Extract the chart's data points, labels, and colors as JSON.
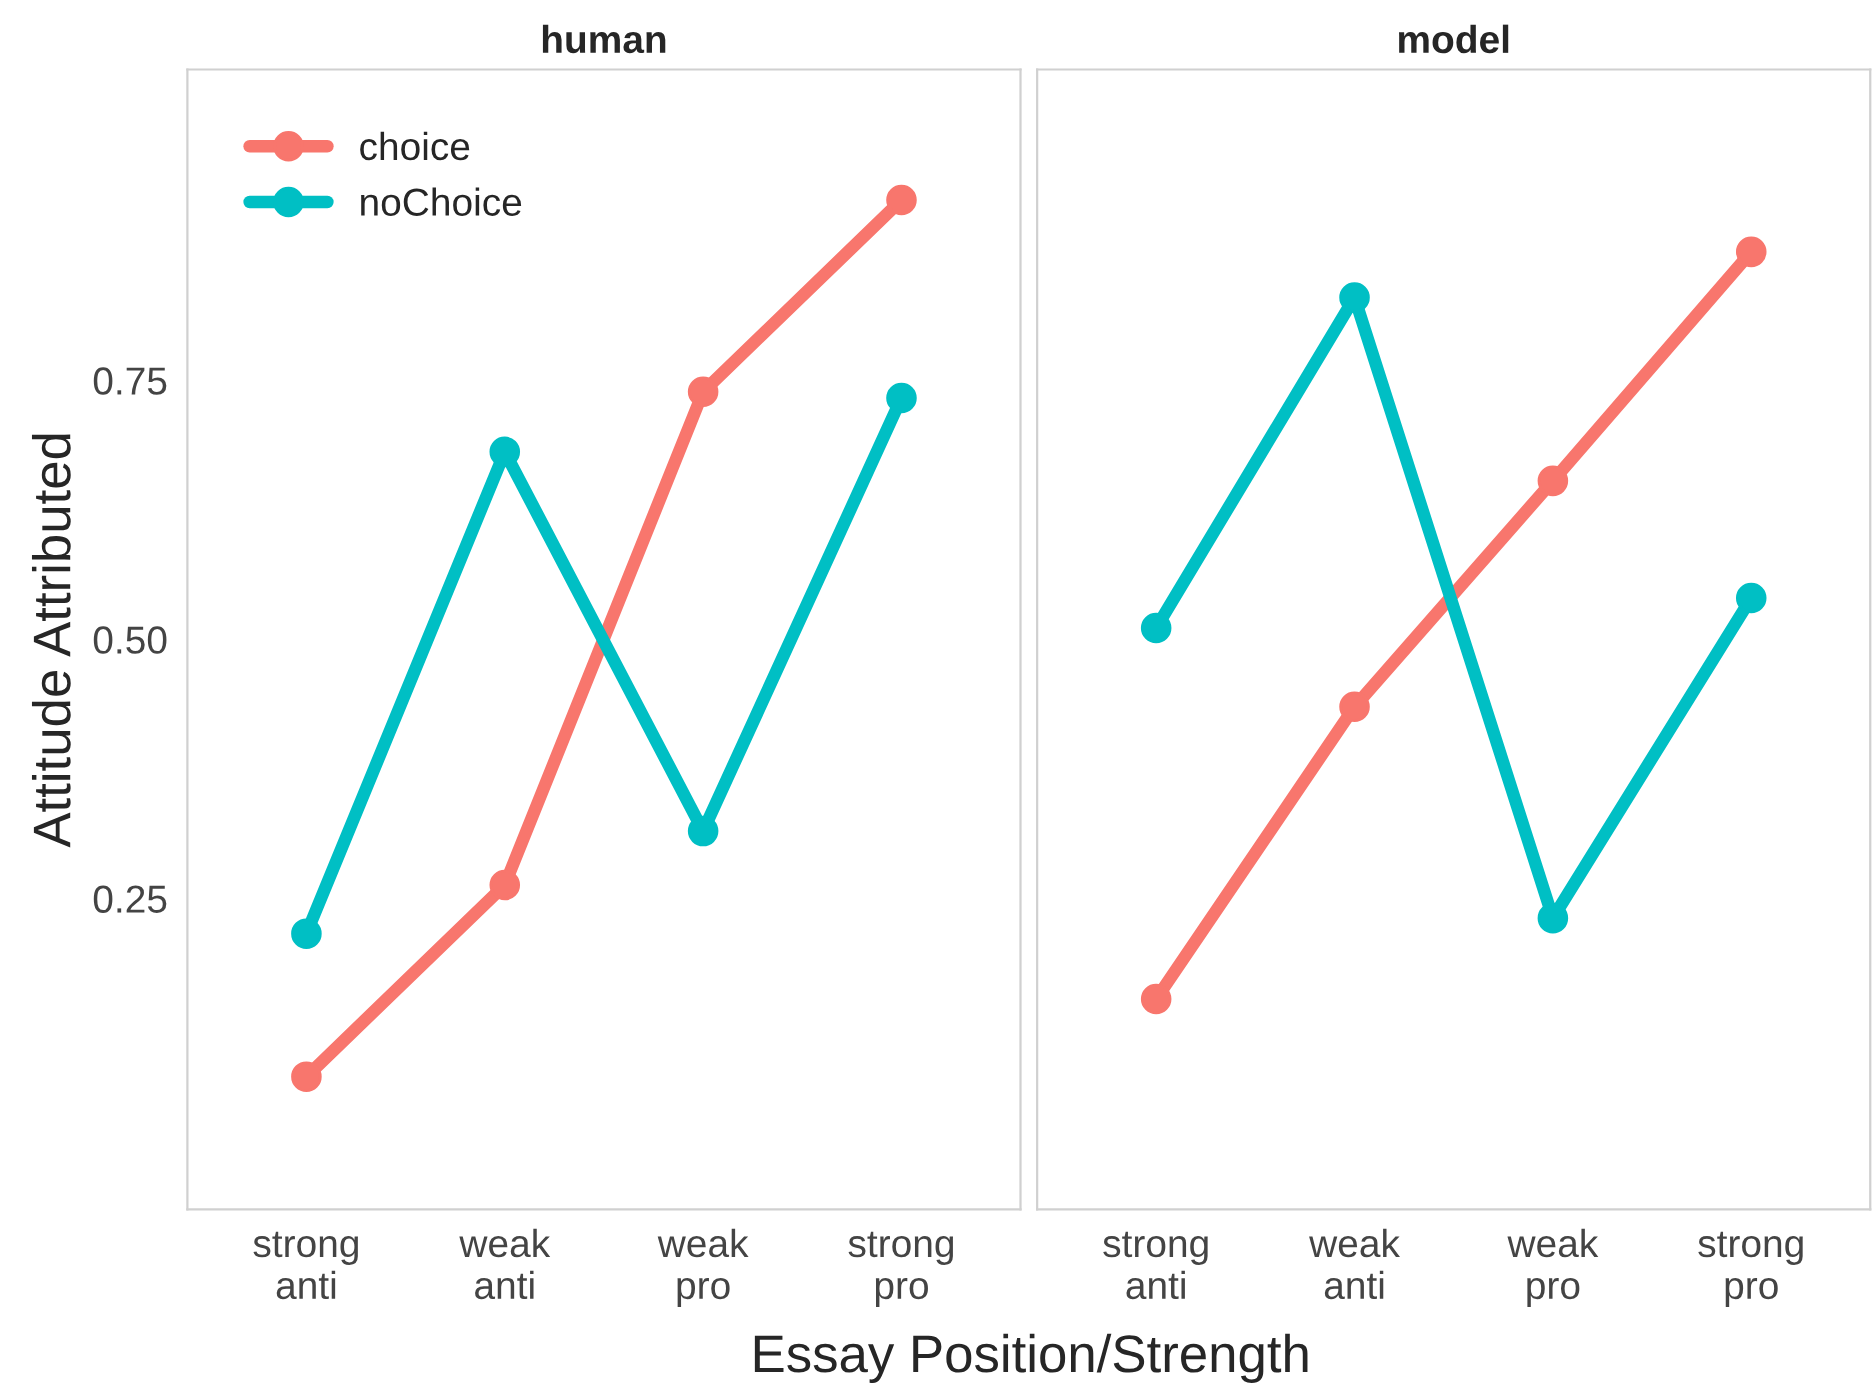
{
  "chart_data": [
    {
      "type": "line",
      "title": "human",
      "xlabel": "Essay Position/Strength",
      "ylabel": "Attitude Attributed",
      "categories": [
        "strong\nanti",
        "weak\nanti",
        "weak\npro",
        "strong\npro"
      ],
      "series": [
        {
          "name": "choice",
          "color": "#f8766d",
          "values": [
            0.078,
            0.263,
            0.739,
            0.924
          ]
        },
        {
          "name": "noChoice",
          "color": "#00bfc4",
          "values": [
            0.216,
            0.681,
            0.315,
            0.733
          ]
        }
      ],
      "ylim": [
        -0.05,
        1.05
      ],
      "yticks": [
        0.25,
        {
          "value": 0.5,
          "label": "0.50"
        },
        0.75
      ],
      "grid": false,
      "legend": "top left",
      "marker": "circle",
      "line_style": "solid"
    },
    {
      "type": "line",
      "title": "model",
      "categories": [
        "strong\nanti",
        "weak\nanti",
        "weak\npro",
        "strong\npro"
      ],
      "series": [
        {
          "color": "#f8766d",
          "values": [
            0.153,
            0.435,
            0.653,
            0.874
          ]
        },
        {
          "color": "#00bfc4",
          "values": [
            0.511,
            0.83,
            0.231,
            0.54
          ]
        }
      ],
      "ylim": [
        -0.05,
        1.05
      ],
      "grid": false,
      "marker": "circle",
      "line_style": "solid",
      "tick_labels": "x"
    }
  ]
}
